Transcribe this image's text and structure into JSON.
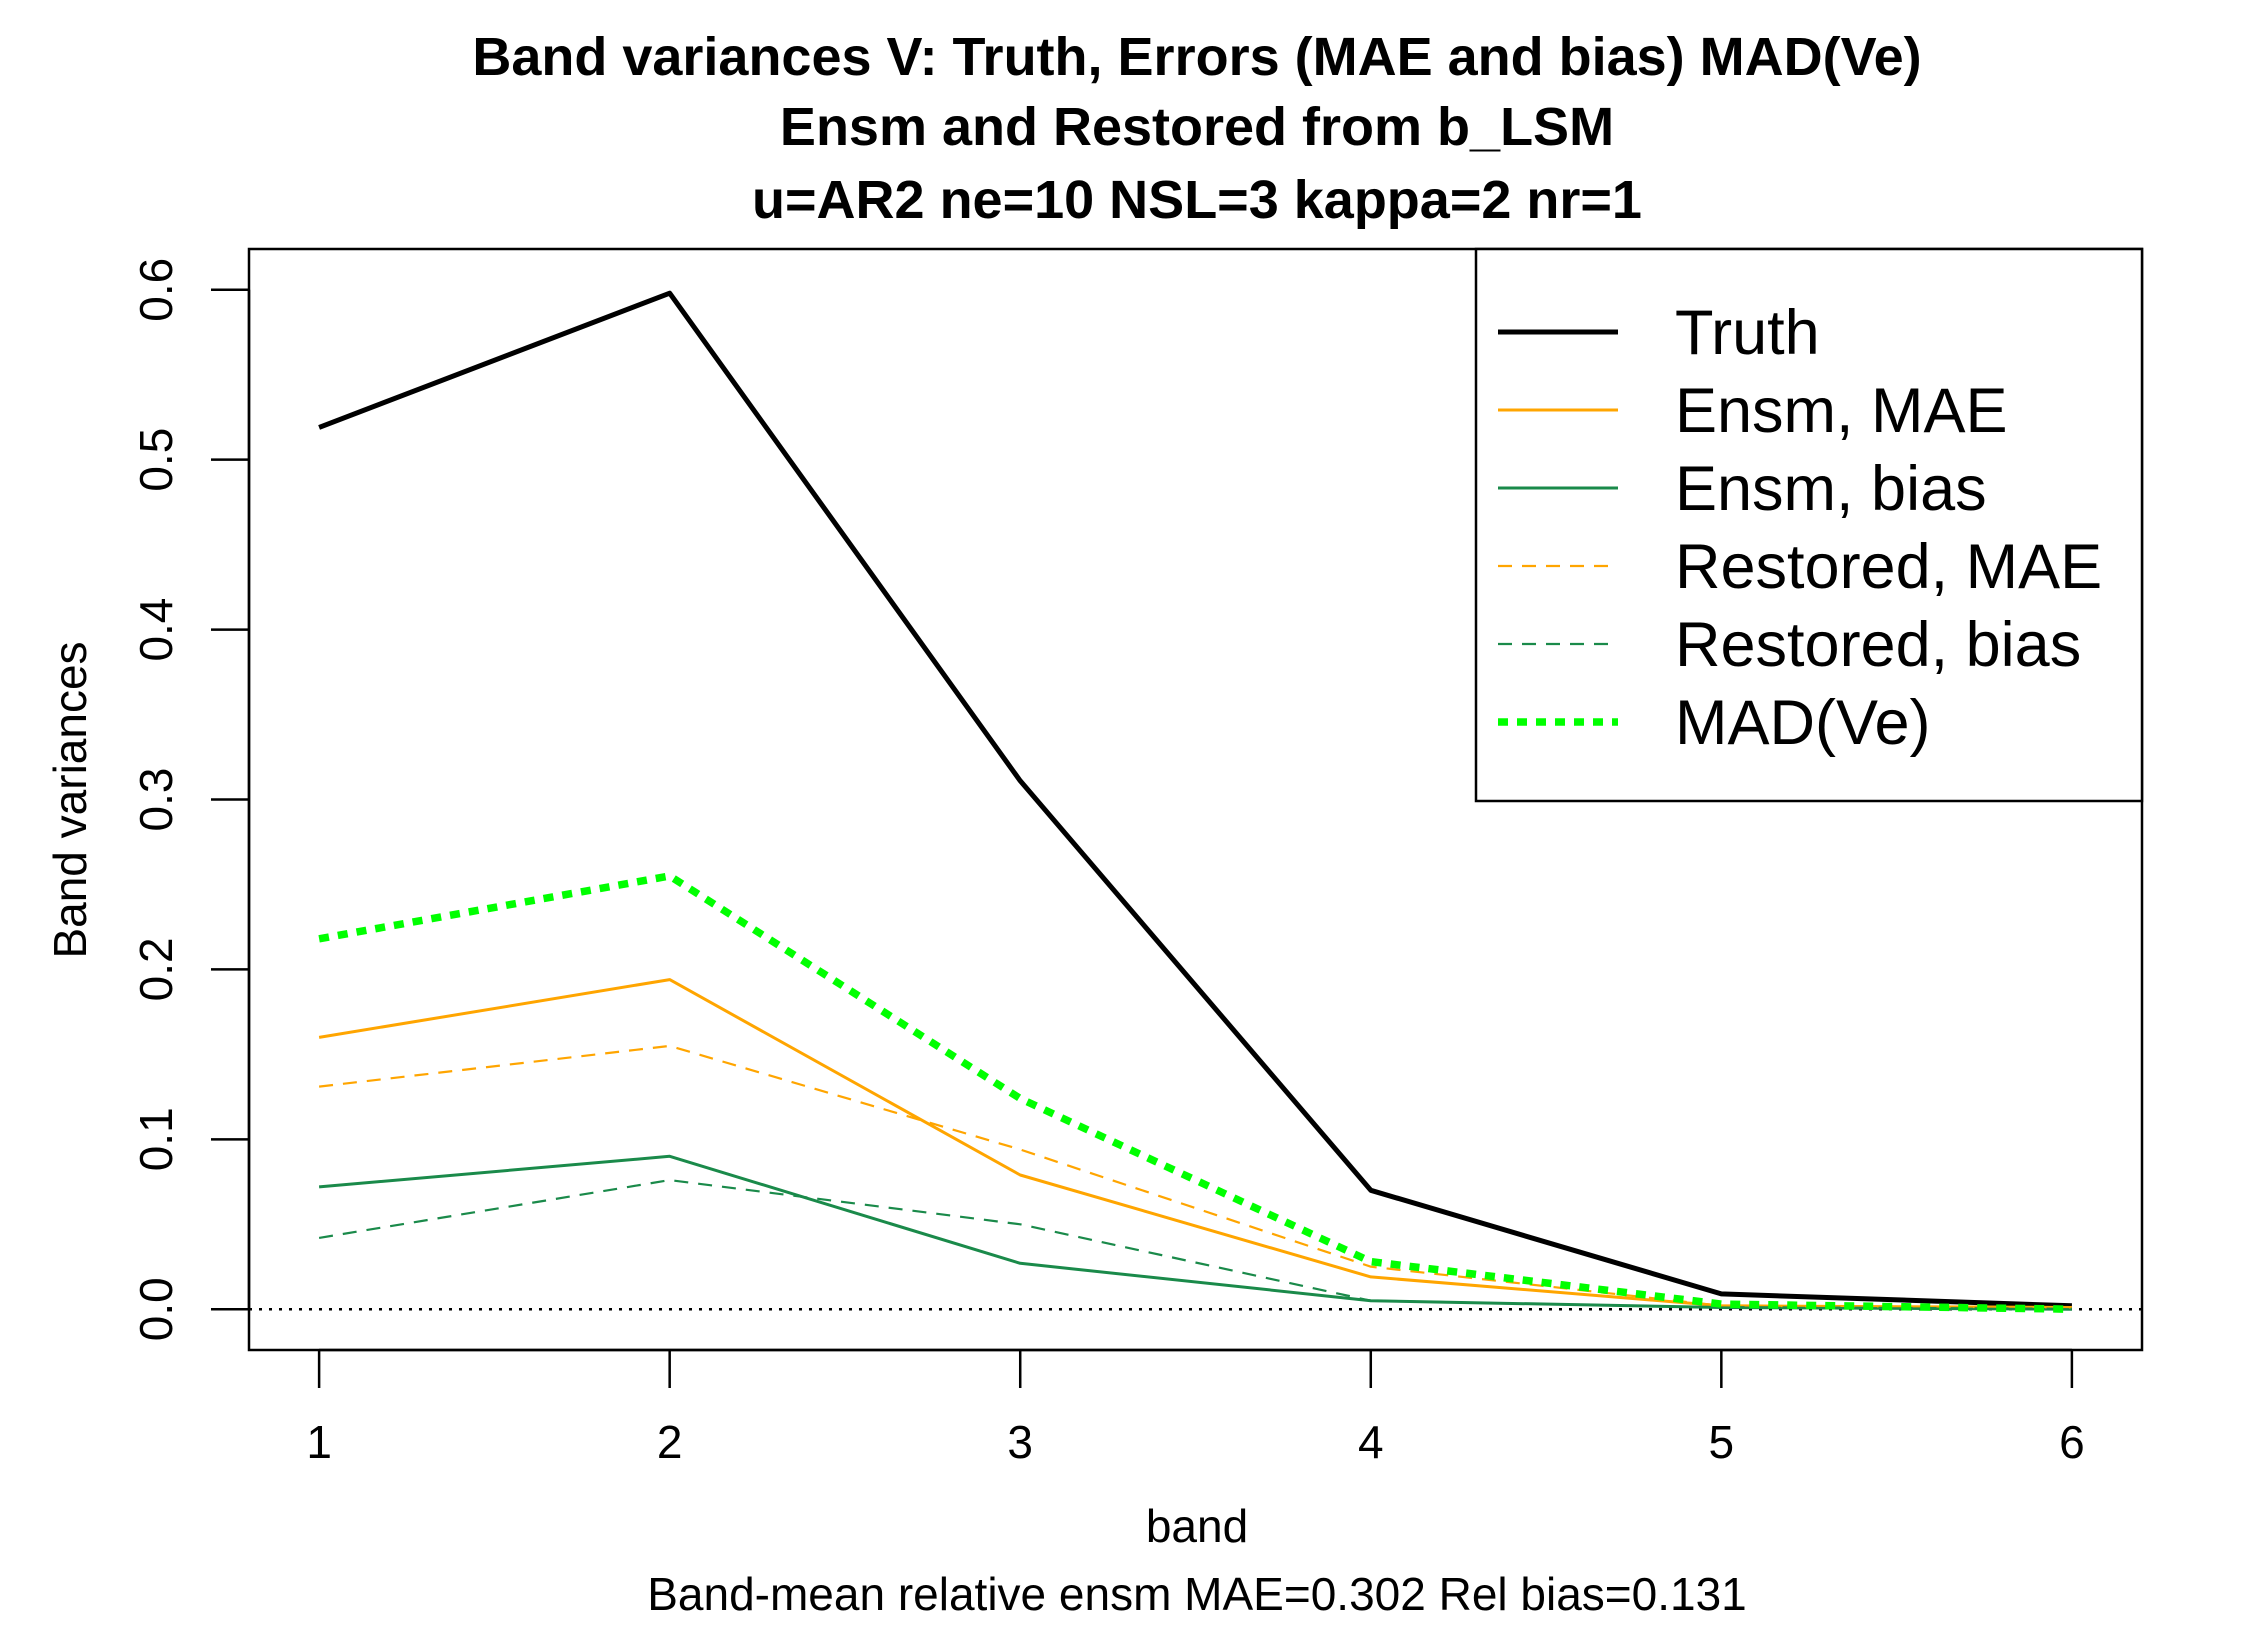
{
  "chart_data": {
    "type": "line",
    "title": [
      "Band variances V: Truth,  Errors (MAE and bias) MAD(Ve)",
      "Ensm and Restored from b_LSM",
      "u=AR2 ne=10 NSL=3 kappa=2 nr=1"
    ],
    "xlabel": "band",
    "ylabel": "Band variances",
    "subtitle": "Band-mean relative ensm MAE=0.302  Rel bias=0.131",
    "x": [
      1,
      2,
      3,
      4,
      5,
      6
    ],
    "xlim": [
      0.8,
      6.2
    ],
    "ylim": [
      -0.024,
      0.624
    ],
    "x_ticks": [
      1,
      2,
      3,
      4,
      5,
      6
    ],
    "y_ticks": [
      0.0,
      0.1,
      0.2,
      0.3,
      0.4,
      0.5,
      0.6
    ],
    "y_tick_labels": [
      "0.0",
      "0.1",
      "0.2",
      "0.3",
      "0.4",
      "0.5",
      "0.6"
    ],
    "reference_line": {
      "y": 0.0,
      "style": "dotted"
    },
    "legend_position": "top-right",
    "series": [
      {
        "name": "Truth",
        "values": [
          0.519,
          0.598,
          0.311,
          0.07,
          0.009,
          0.002
        ],
        "color": "#000000",
        "style": "solid",
        "width": "thick"
      },
      {
        "name": "Ensm, MAE",
        "values": [
          0.16,
          0.194,
          0.079,
          0.019,
          0.002,
          0.001
        ],
        "color": "#FFA500",
        "style": "solid",
        "width": "normal"
      },
      {
        "name": "Ensm, bias",
        "values": [
          0.072,
          0.09,
          0.027,
          0.005,
          0.001,
          0.0
        ],
        "color": "#1A8A4A",
        "style": "solid",
        "width": "normal"
      },
      {
        "name": "Restored, MAE",
        "values": [
          0.131,
          0.155,
          0.094,
          0.025,
          0.002,
          0.001
        ],
        "color": "#FFA500",
        "style": "dashed",
        "width": "normal"
      },
      {
        "name": "Restored, bias",
        "values": [
          0.042,
          0.076,
          0.05,
          0.005,
          0.001,
          0.0
        ],
        "color": "#1A8A4A",
        "style": "dashed",
        "width": "normal"
      },
      {
        "name": "MAD(Ve)",
        "values": [
          0.218,
          0.255,
          0.124,
          0.028,
          0.003,
          0.0
        ],
        "color": "#00FF00",
        "style": "dotted",
        "width": "thick"
      }
    ]
  }
}
